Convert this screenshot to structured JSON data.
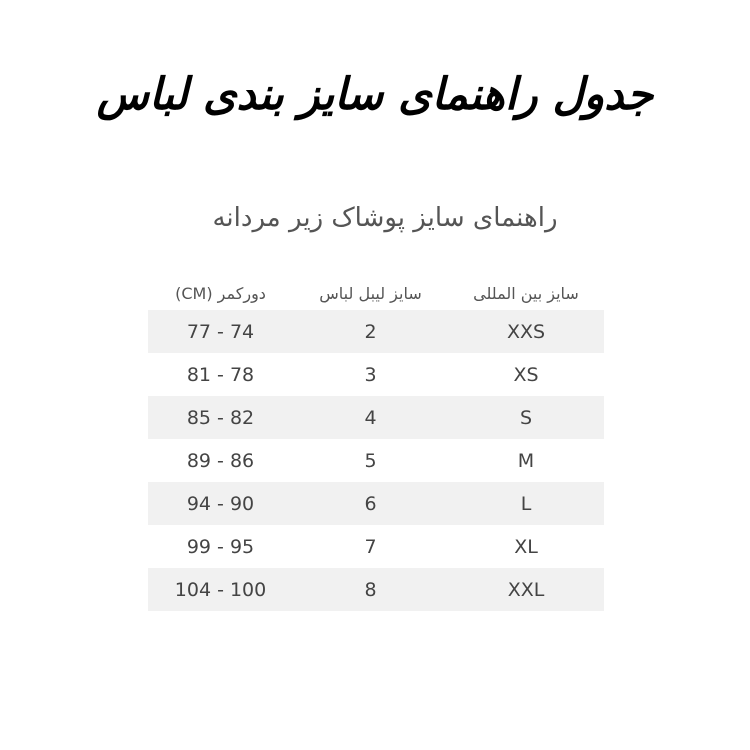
{
  "title": "جدول راهنمای سایز بندی لباس",
  "subtitle": "راهنمای سایز پوشاک زیر مردانه",
  "table": {
    "headers": [
      "سایز بین المللی",
      "سایز لیبل لباس",
      "دورکمر (CM)"
    ],
    "rows": [
      [
        "XXS",
        "2",
        "77 - 74"
      ],
      [
        "XS",
        "3",
        "81 - 78"
      ],
      [
        "S",
        "4",
        "85 - 82"
      ],
      [
        "M",
        "5",
        "89 - 86"
      ],
      [
        "L",
        "6",
        "94 - 90"
      ],
      [
        "XL",
        "7",
        "99 - 95"
      ],
      [
        "XXL",
        "8",
        "104 - 100"
      ]
    ]
  }
}
